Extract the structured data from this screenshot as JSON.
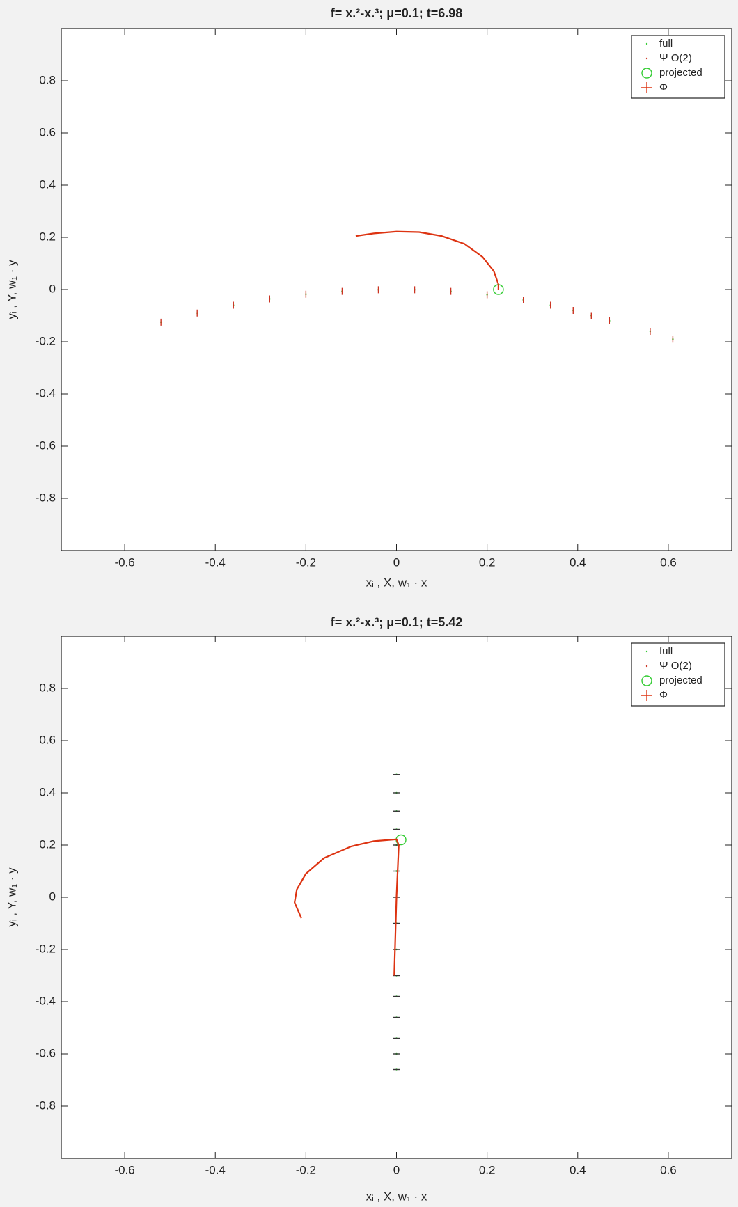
{
  "chart_data": [
    {
      "type": "line",
      "title": "f= x.²-x.³;  μ=0.1; t=6.98",
      "xlabel": "xᵢ , X, w₁ · x",
      "ylabel": "yᵢ , Y, w₁ · y",
      "xlim": [
        -0.74,
        0.74
      ],
      "ylim": [
        -1,
        1
      ],
      "xticks": [
        -0.6,
        -0.4,
        -0.2,
        0,
        0.2,
        0.4,
        0.6
      ],
      "yticks": [
        -0.8,
        -0.6,
        -0.4,
        -0.2,
        0,
        0.2,
        0.4,
        0.6,
        0.8
      ],
      "legend": "upper right",
      "series": [
        {
          "name": "full",
          "color": "#33cc33",
          "marker": "dot",
          "x": [
            -0.52,
            -0.44,
            -0.36,
            -0.28,
            -0.2,
            -0.12,
            -0.04,
            0.04,
            0.12,
            0.2,
            0.28,
            0.34,
            0.39,
            0.43,
            0.47,
            0.56,
            0.61
          ],
          "values": [
            -0.125,
            -0.09,
            -0.06,
            -0.036,
            -0.018,
            -0.007,
            -0.001,
            -0.001,
            -0.007,
            -0.02,
            -0.04,
            -0.06,
            -0.08,
            -0.1,
            -0.12,
            -0.16,
            -0.19
          ]
        },
        {
          "name": "Ψ O(2)",
          "color": "#cc3322",
          "marker": "vtick",
          "x": [
            -0.52,
            -0.44,
            -0.36,
            -0.28,
            -0.2,
            -0.12,
            -0.04,
            0.04,
            0.12,
            0.2,
            0.28,
            0.34,
            0.39,
            0.43,
            0.47,
            0.56,
            0.61
          ],
          "values": [
            -0.125,
            -0.09,
            -0.06,
            -0.036,
            -0.018,
            -0.007,
            -0.001,
            -0.001,
            -0.007,
            -0.02,
            -0.04,
            -0.06,
            -0.08,
            -0.1,
            -0.12,
            -0.16,
            -0.19
          ]
        },
        {
          "name": "projected",
          "color": "#33cc33",
          "marker": "circle",
          "x": [
            0.225
          ],
          "values": [
            0
          ]
        },
        {
          "name": "Φ",
          "color": "#dd3311",
          "marker": "line",
          "x": [
            -0.09,
            -0.05,
            0,
            0.05,
            0.1,
            0.15,
            0.19,
            0.215,
            0.225,
            0.225
          ],
          "values": [
            0.205,
            0.215,
            0.222,
            0.22,
            0.205,
            0.175,
            0.125,
            0.07,
            0.02,
            0
          ]
        }
      ]
    },
    {
      "type": "line",
      "title": "f= x.²-x.³;  μ=0.1; t=5.42",
      "xlabel": "xᵢ , X, w₁ · x",
      "ylabel": "yᵢ , Y, w₁ · y",
      "xlim": [
        -0.74,
        0.74
      ],
      "ylim": [
        -1,
        1
      ],
      "xticks": [
        -0.6,
        -0.4,
        -0.2,
        0,
        0.2,
        0.4,
        0.6
      ],
      "yticks": [
        -0.8,
        -0.6,
        -0.4,
        -0.2,
        0,
        0.2,
        0.4,
        0.6,
        0.8
      ],
      "legend": "upper right",
      "series": [
        {
          "name": "full",
          "color": "#33cc33",
          "marker": "dot",
          "x": [
            0,
            0,
            0,
            0,
            0,
            0,
            0,
            0,
            0,
            0,
            0,
            0,
            0,
            0,
            0
          ],
          "values": [
            0.47,
            0.4,
            0.33,
            0.26,
            0.2,
            0.1,
            0,
            -0.1,
            -0.2,
            -0.3,
            -0.38,
            -0.46,
            -0.54,
            -0.6,
            -0.66
          ]
        },
        {
          "name": "Ψ O(2)",
          "color": "#333333",
          "marker": "htick",
          "x": [
            0,
            0,
            0,
            0,
            0,
            0,
            0,
            0,
            0,
            0,
            0,
            0,
            0,
            0,
            0
          ],
          "values": [
            0.47,
            0.4,
            0.33,
            0.26,
            0.2,
            0.1,
            0,
            -0.1,
            -0.2,
            -0.3,
            -0.38,
            -0.46,
            -0.54,
            -0.6,
            -0.66
          ]
        },
        {
          "name": "projected",
          "color": "#33cc33",
          "marker": "circle",
          "x": [
            0.01
          ],
          "values": [
            0.22
          ]
        },
        {
          "name": "Φ",
          "color": "#dd3311",
          "marker": "line",
          "x": [
            -0.21,
            -0.225,
            -0.22,
            -0.2,
            -0.16,
            -0.1,
            -0.05,
            0,
            0.005,
            0,
            -0.005
          ],
          "values": [
            -0.08,
            -0.02,
            0.03,
            0.09,
            0.15,
            0.195,
            0.215,
            0.222,
            0.2,
            0,
            -0.3
          ]
        }
      ]
    }
  ]
}
